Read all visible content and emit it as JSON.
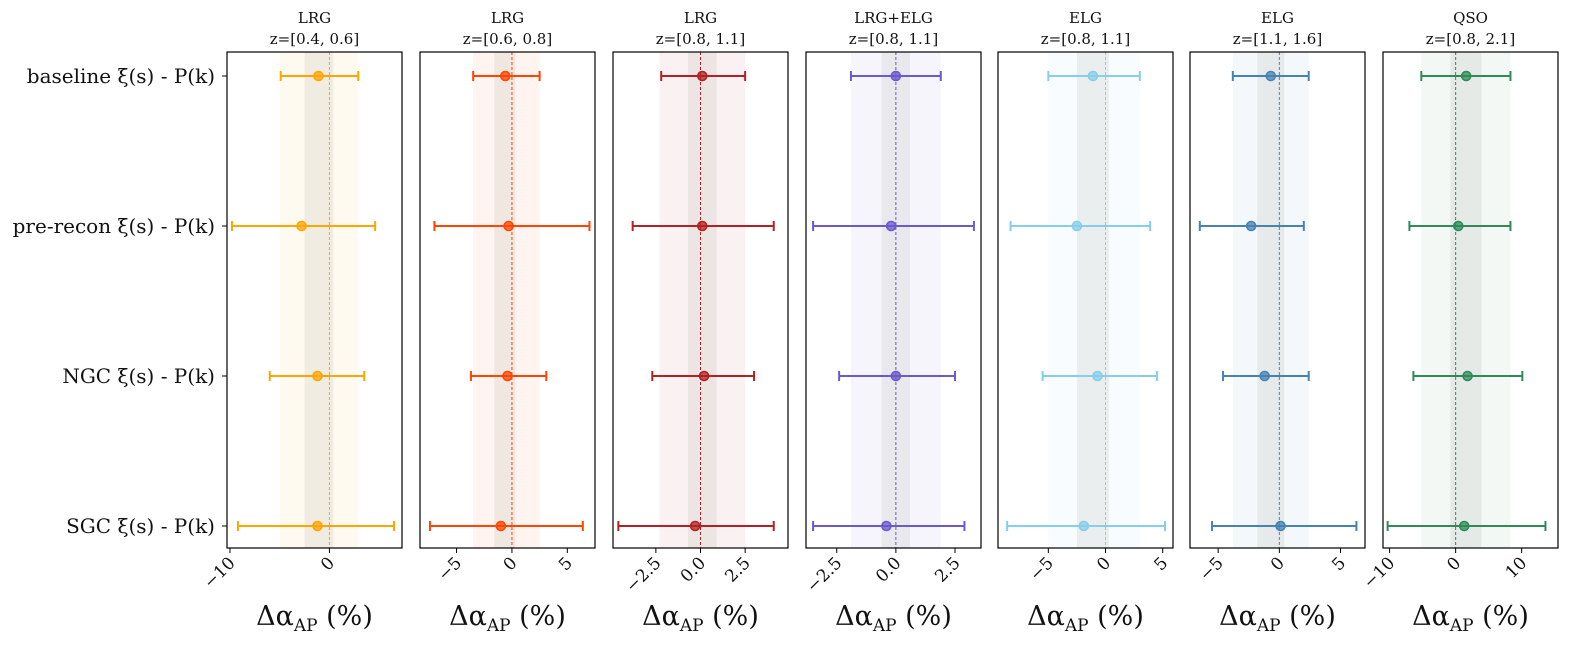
{
  "chart_data": {
    "type": "errorbar",
    "row_labels": [
      "baseline ξ(s) - P(k)",
      "pre-recon ξ(s) - P(k)",
      "NGC ξ(s) - P(k)",
      "SGC ξ(s) - P(k)"
    ],
    "xlabel_main": "Δα",
    "xlabel_sub": "AP",
    "xlabel_tail": " (%)",
    "panels": [
      {
        "title": "LRG",
        "subtitle": "z=[0.4, 0.6]",
        "color": "#ffa500",
        "xlim": [
          -10.3,
          7.3
        ],
        "ticks": [
          -10,
          0
        ],
        "tick_labels": [
          "−10",
          "0"
        ],
        "band_outer": [
          -5.0,
          2.9
        ],
        "band_inner": [
          -2.5,
          0.4
        ],
        "points": [
          {
            "value": -1.1,
            "err_low": -4.9,
            "err_high": 2.9
          },
          {
            "value": -2.8,
            "err_low": -9.8,
            "err_high": 4.6
          },
          {
            "value": -1.2,
            "err_low": -6.0,
            "err_high": 3.5
          },
          {
            "value": -1.2,
            "err_low": -9.2,
            "err_high": 6.5
          }
        ]
      },
      {
        "title": "LRG",
        "subtitle": "z=[0.6, 0.8]",
        "color": "#ff4500",
        "xlim": [
          -8.3,
          7.5
        ],
        "ticks": [
          -5,
          0,
          5
        ],
        "tick_labels": [
          "−5",
          "0",
          "5"
        ],
        "band_outer": [
          -3.5,
          2.5
        ],
        "band_inner": [
          -1.6,
          0.3
        ],
        "points": [
          {
            "value": -0.6,
            "err_low": -3.5,
            "err_high": 2.5
          },
          {
            "value": -0.3,
            "err_low": -7.0,
            "err_high": 7.0
          },
          {
            "value": -0.4,
            "err_low": -3.7,
            "err_high": 3.1
          },
          {
            "value": -1.0,
            "err_low": -7.4,
            "err_high": 6.4
          }
        ]
      },
      {
        "title": "LRG",
        "subtitle": "z=[0.8, 1.1]",
        "color": "#b22222",
        "xlim": [
          -4.9,
          4.9
        ],
        "ticks": [
          -2.5,
          0.0,
          2.5
        ],
        "tick_labels": [
          "−2.5",
          "0.0",
          "2.5"
        ],
        "band_outer": [
          -2.3,
          2.5
        ],
        "band_inner": [
          -0.7,
          0.9
        ],
        "points": [
          {
            "value": 0.1,
            "err_low": -2.2,
            "err_high": 2.5
          },
          {
            "value": 0.1,
            "err_low": -3.8,
            "err_high": 4.1
          },
          {
            "value": 0.2,
            "err_low": -2.7,
            "err_high": 3.0
          },
          {
            "value": -0.3,
            "err_low": -4.6,
            "err_high": 4.1
          }
        ]
      },
      {
        "title": "LRG+ELG",
        "subtitle": "z=[0.8, 1.1]",
        "color": "#6a5acd",
        "xlim": [
          -3.8,
          3.6
        ],
        "ticks": [
          -2.5,
          0.0,
          2.5
        ],
        "tick_labels": [
          "−2.5",
          "0.0",
          "2.5"
        ],
        "band_outer": [
          -1.9,
          1.9
        ],
        "band_inner": [
          -0.6,
          0.6
        ],
        "points": [
          {
            "value": 0.0,
            "err_low": -1.9,
            "err_high": 1.9
          },
          {
            "value": -0.2,
            "err_low": -3.5,
            "err_high": 3.3
          },
          {
            "value": 0.0,
            "err_low": -2.4,
            "err_high": 2.5
          },
          {
            "value": -0.4,
            "err_low": -3.5,
            "err_high": 2.9
          }
        ]
      },
      {
        "title": "ELG",
        "subtitle": "z=[0.8, 1.1]",
        "color": "#87ceeb",
        "xlim": [
          -9.4,
          5.9
        ],
        "ticks": [
          -5,
          0,
          5
        ],
        "tick_labels": [
          "−5",
          "0",
          "5"
        ],
        "band_outer": [
          -5.0,
          3.0
        ],
        "band_inner": [
          -2.5,
          0.3
        ],
        "points": [
          {
            "value": -1.1,
            "err_low": -5.0,
            "err_high": 3.0
          },
          {
            "value": -2.5,
            "err_low": -8.3,
            "err_high": 3.9
          },
          {
            "value": -0.7,
            "err_low": -5.5,
            "err_high": 4.5
          },
          {
            "value": -1.9,
            "err_low": -8.6,
            "err_high": 5.2
          }
        ]
      },
      {
        "title": "ELG",
        "subtitle": "z=[1.1, 1.6]",
        "color": "#4682b4",
        "xlim": [
          -7.3,
          7.0
        ],
        "ticks": [
          -5,
          0,
          5
        ],
        "tick_labels": [
          "−5",
          "0",
          "5"
        ],
        "band_outer": [
          -3.8,
          2.4
        ],
        "band_inner": [
          -1.8,
          0.4
        ],
        "points": [
          {
            "value": -0.7,
            "err_low": -3.8,
            "err_high": 2.4
          },
          {
            "value": -2.3,
            "err_low": -6.5,
            "err_high": 2.0
          },
          {
            "value": -1.2,
            "err_low": -4.6,
            "err_high": 2.4
          },
          {
            "value": 0.1,
            "err_low": -5.5,
            "err_high": 6.3
          }
        ]
      },
      {
        "title": "QSO",
        "subtitle": "z=[0.8, 2.1]",
        "color": "#2e8b57",
        "xlim": [
          -11.0,
          15.5
        ],
        "ticks": [
          -10,
          0,
          10
        ],
        "tick_labels": [
          "−10",
          "0",
          "10"
        ],
        "band_outer": [
          -5.2,
          8.3
        ],
        "band_inner": [
          -0.8,
          3.9
        ],
        "points": [
          {
            "value": 1.6,
            "err_low": -5.2,
            "err_high": 8.3
          },
          {
            "value": 0.4,
            "err_low": -7.0,
            "err_high": 8.3
          },
          {
            "value": 1.8,
            "err_low": -6.4,
            "err_high": 10.1
          },
          {
            "value": 1.3,
            "err_low": -10.3,
            "err_high": 13.6
          }
        ]
      }
    ]
  }
}
